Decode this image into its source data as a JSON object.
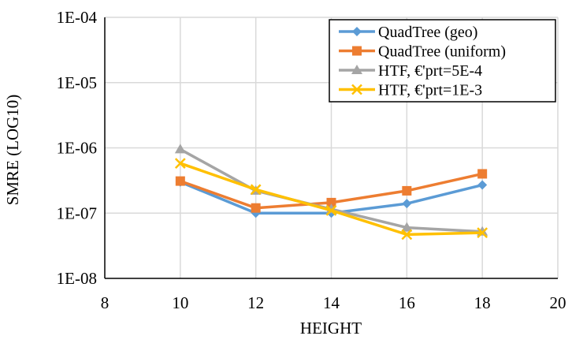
{
  "chart_data": {
    "type": "line",
    "title": "",
    "xlabel": "HEIGHT",
    "ylabel": "SMRE (LOG10)",
    "yscale": "log10",
    "xlim": [
      8,
      20
    ],
    "ylim": [
      1e-08,
      0.0001
    ],
    "x_ticks": [
      8,
      10,
      12,
      14,
      16,
      18,
      20
    ],
    "x_tick_labels": [
      "8",
      "10",
      "12",
      "14",
      "16",
      "18",
      "20"
    ],
    "y_ticks": [
      1e-08,
      1e-07,
      1e-06,
      1e-05,
      0.0001
    ],
    "y_tick_labels": [
      "1E-08",
      "1E-07",
      "1E-06",
      "1E-05",
      "1E-04"
    ],
    "grid": true,
    "legend_position": "top-right",
    "x": [
      10,
      12,
      14,
      16,
      18
    ],
    "series": [
      {
        "name": "QuadTree (geo)",
        "color": "#5B9BD5",
        "marker": "diamond",
        "values": [
          3e-07,
          1e-07,
          1e-07,
          1.4e-07,
          2.7e-07
        ]
      },
      {
        "name": "QuadTree (uniform)",
        "color": "#ED7D31",
        "marker": "square",
        "values": [
          3.1e-07,
          1.2e-07,
          1.45e-07,
          2.2e-07,
          4e-07
        ]
      },
      {
        "name": "HTF, €'prt=5E-4",
        "color": "#A5A5A5",
        "marker": "triangle",
        "values": [
          9.5e-07,
          2.2e-07,
          1.15e-07,
          6e-08,
          5.2e-08
        ]
      },
      {
        "name": "HTF, €'prt=1E-3",
        "color": "#FFC000",
        "marker": "x",
        "values": [
          5.8e-07,
          2.3e-07,
          1.1e-07,
          4.7e-08,
          5e-08
        ]
      }
    ]
  }
}
